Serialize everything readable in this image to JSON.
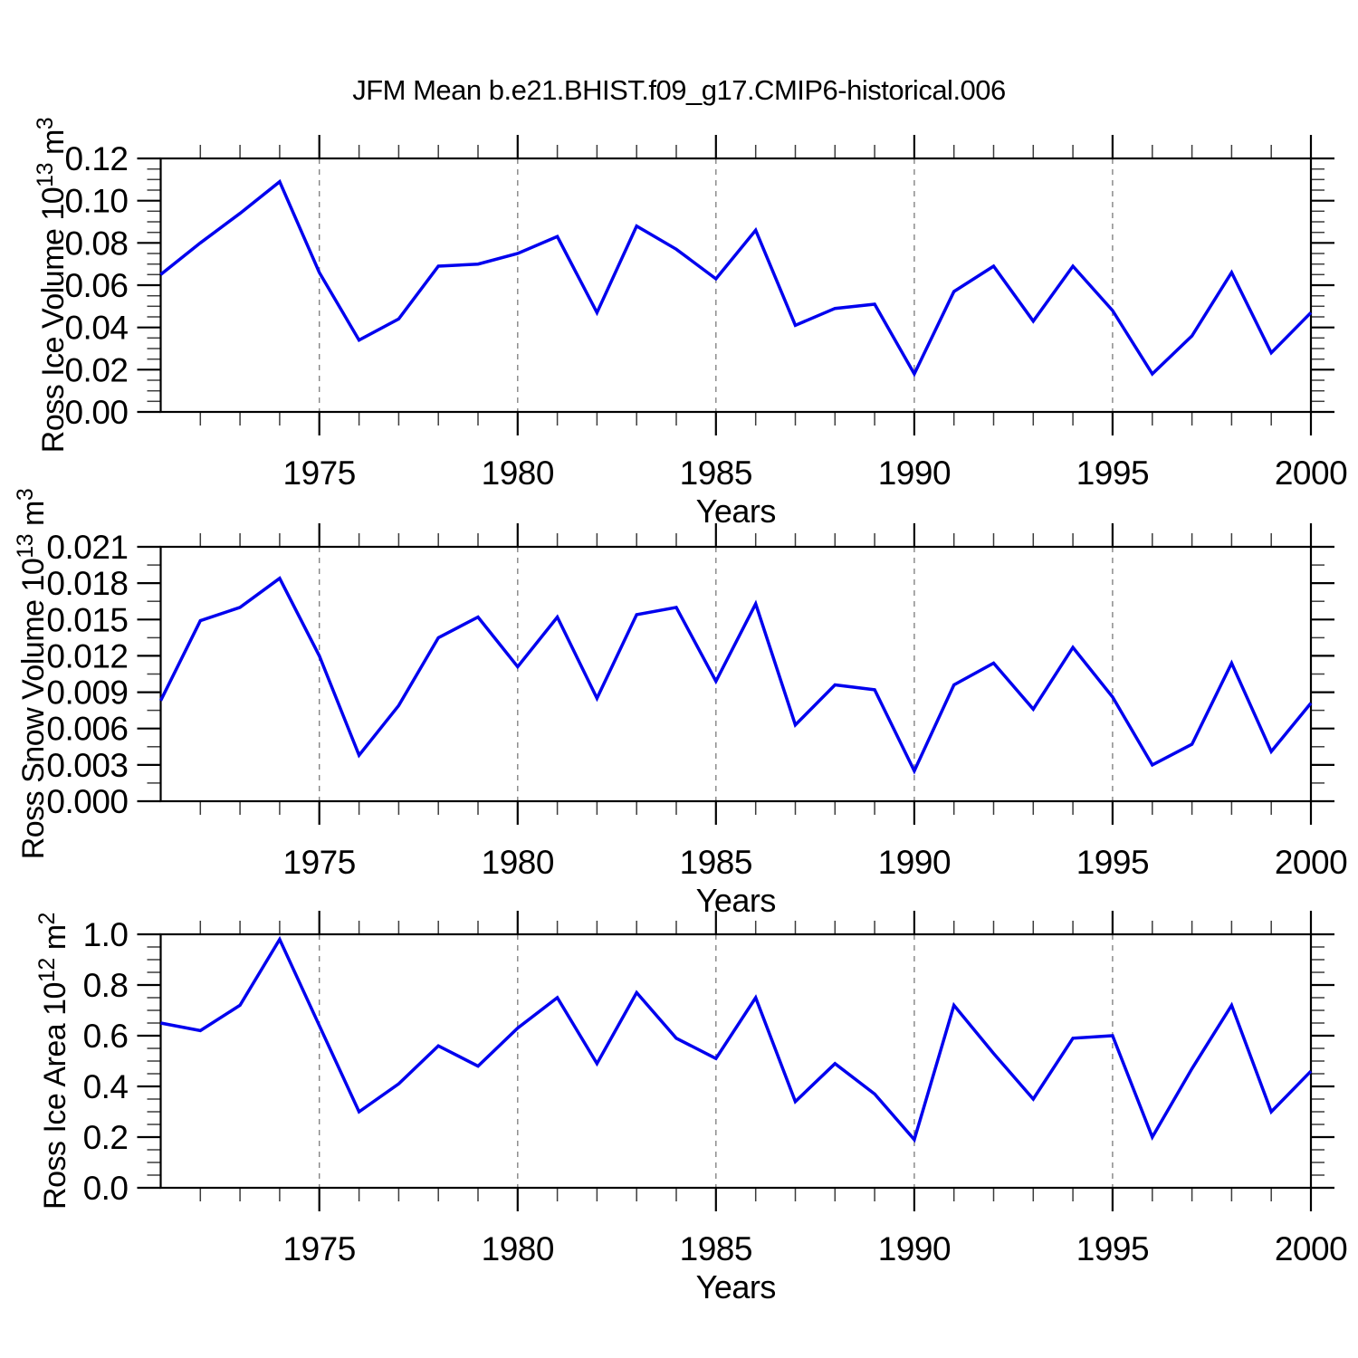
{
  "title": "JFM Mean b.e21.BHIST.f09_g17.CMIP6-historical.006",
  "colors": {
    "line": "#0000ee",
    "grid": "#848484",
    "axis": "#000000"
  },
  "chart_data": [
    {
      "type": "line",
      "name": "ross-ice-volume",
      "ylabel": "Ross Ice Volume 10^13 m^3",
      "ylabel_parts": [
        {
          "t": "Ross Ice Volume 10"
        },
        {
          "t": "13",
          "sup": true
        },
        {
          "t": " m"
        },
        {
          "t": "3",
          "sup": true
        }
      ],
      "xlabel": "Years",
      "xlim": [
        1971,
        2000
      ],
      "ylim": [
        0,
        0.12
      ],
      "y_major_step": 0.02,
      "y_minor_step": 0.005,
      "y_tick_labels": [
        "0.00",
        "0.02",
        "0.04",
        "0.06",
        "0.08",
        "0.10",
        "0.12"
      ],
      "x_major_ticks": [
        1975,
        1980,
        1985,
        1990,
        1995,
        2000
      ],
      "x_tick_labels": [
        "1975",
        "1980",
        "1985",
        "1990",
        "1995",
        "2000"
      ],
      "gridline_years": [
        1975,
        1980,
        1985,
        1990,
        1995
      ],
      "grid_on": true,
      "legend": "none",
      "x": [
        1971,
        1972,
        1973,
        1974,
        1975,
        1976,
        1977,
        1978,
        1979,
        1980,
        1981,
        1982,
        1983,
        1984,
        1985,
        1986,
        1987,
        1988,
        1989,
        1990,
        1991,
        1992,
        1993,
        1994,
        1995,
        1996,
        1997,
        1998,
        1999,
        2000
      ],
      "values": [
        0.065,
        0.08,
        0.094,
        0.109,
        0.066,
        0.034,
        0.044,
        0.069,
        0.07,
        0.075,
        0.083,
        0.047,
        0.088,
        0.077,
        0.063,
        0.086,
        0.041,
        0.049,
        0.051,
        0.018,
        0.057,
        0.069,
        0.043,
        0.069,
        0.048,
        0.018,
        0.036,
        0.066,
        0.028,
        0.047
      ]
    },
    {
      "type": "line",
      "name": "ross-snow-volume",
      "ylabel": "Ross Snow Volume 10^13 m^3",
      "ylabel_parts": [
        {
          "t": "Ross Snow Volume 10"
        },
        {
          "t": "13",
          "sup": true
        },
        {
          "t": " m"
        },
        {
          "t": "3",
          "sup": true
        }
      ],
      "xlabel": "Years",
      "xlim": [
        1971,
        2000
      ],
      "ylim": [
        0,
        0.021
      ],
      "y_major_step": 0.003,
      "y_minor_step": 0.0015,
      "y_tick_labels": [
        "0.000",
        "0.003",
        "0.006",
        "0.009",
        "0.012",
        "0.015",
        "0.018",
        "0.021"
      ],
      "x_major_ticks": [
        1975,
        1980,
        1985,
        1990,
        1995,
        2000
      ],
      "x_tick_labels": [
        "1975",
        "1980",
        "1985",
        "1990",
        "1995",
        "2000"
      ],
      "gridline_years": [
        1975,
        1980,
        1985,
        1990,
        1995
      ],
      "grid_on": true,
      "legend": "none",
      "x": [
        1971,
        1972,
        1973,
        1974,
        1975,
        1976,
        1977,
        1978,
        1979,
        1980,
        1981,
        1982,
        1983,
        1984,
        1985,
        1986,
        1987,
        1988,
        1989,
        1990,
        1991,
        1992,
        1993,
        1994,
        1995,
        1996,
        1997,
        1998,
        1999,
        2000
      ],
      "values": [
        0.0083,
        0.0149,
        0.016,
        0.0184,
        0.012,
        0.0038,
        0.0079,
        0.0135,
        0.0152,
        0.0111,
        0.0152,
        0.0085,
        0.0154,
        0.016,
        0.0099,
        0.0163,
        0.0063,
        0.0096,
        0.0092,
        0.0025,
        0.0096,
        0.0114,
        0.0076,
        0.0127,
        0.0086,
        0.003,
        0.0047,
        0.0114,
        0.0041,
        0.0081
      ]
    },
    {
      "type": "line",
      "name": "ross-ice-area",
      "ylabel": "Ross Ice Area 10^12 m^2",
      "ylabel_parts": [
        {
          "t": "Ross Ice Area 10"
        },
        {
          "t": "12",
          "sup": true
        },
        {
          "t": " m"
        },
        {
          "t": "2",
          "sup": true
        }
      ],
      "xlabel": "Years",
      "xlim": [
        1971,
        2000
      ],
      "ylim": [
        0,
        1.0
      ],
      "y_major_step": 0.2,
      "y_minor_step": 0.05,
      "y_tick_labels": [
        "0.0",
        "0.2",
        "0.4",
        "0.6",
        "0.8",
        "1.0"
      ],
      "x_major_ticks": [
        1975,
        1980,
        1985,
        1990,
        1995,
        2000
      ],
      "x_tick_labels": [
        "1975",
        "1980",
        "1985",
        "1990",
        "1995",
        "2000"
      ],
      "gridline_years": [
        1975,
        1980,
        1985,
        1990,
        1995
      ],
      "grid_on": true,
      "legend": "none",
      "x": [
        1971,
        1972,
        1973,
        1974,
        1975,
        1976,
        1977,
        1978,
        1979,
        1980,
        1981,
        1982,
        1983,
        1984,
        1985,
        1986,
        1987,
        1988,
        1989,
        1990,
        1991,
        1992,
        1993,
        1994,
        1995,
        1996,
        1997,
        1998,
        1999,
        2000
      ],
      "values": [
        0.65,
        0.62,
        0.72,
        0.98,
        0.64,
        0.3,
        0.41,
        0.56,
        0.48,
        0.63,
        0.75,
        0.49,
        0.77,
        0.59,
        0.51,
        0.75,
        0.34,
        0.49,
        0.37,
        0.19,
        0.72,
        0.53,
        0.35,
        0.59,
        0.6,
        0.2,
        0.47,
        0.72,
        0.3,
        0.46
      ]
    }
  ]
}
